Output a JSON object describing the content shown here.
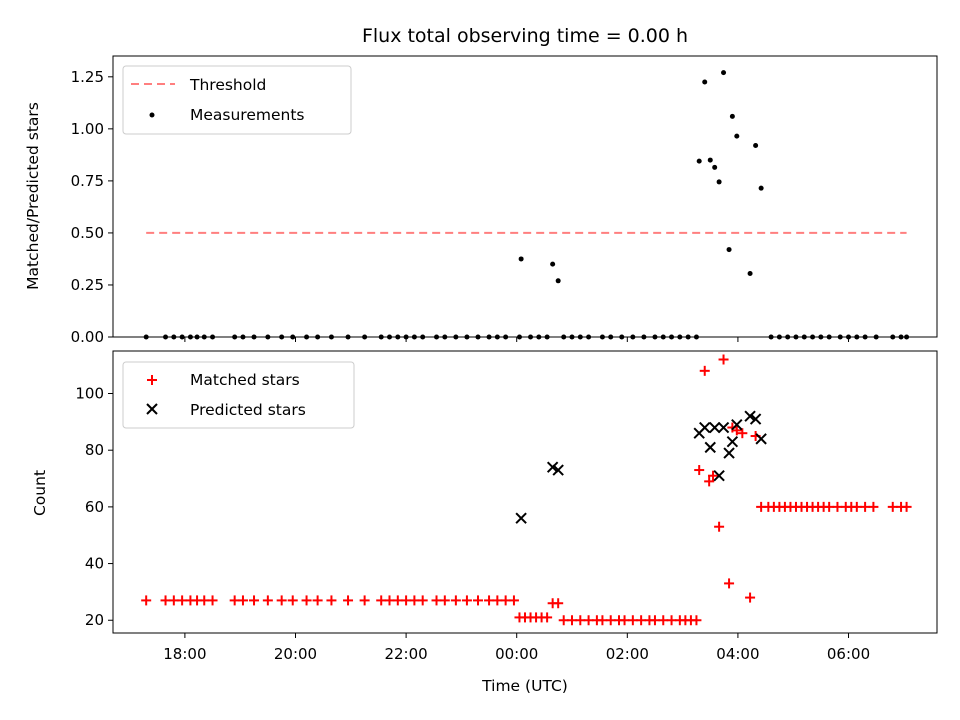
{
  "chart_data": [
    {
      "type": "scatter",
      "title": "Flux total observing time = 0.00 h",
      "xlabel": "",
      "ylabel": "Matched/Predicted stars",
      "ylim": [
        0,
        1.35
      ],
      "yticks": [
        0.0,
        0.25,
        0.5,
        0.75,
        1.0,
        1.25
      ],
      "ytick_labels": [
        "0.00",
        "0.25",
        "0.50",
        "0.75",
        "1.00",
        "1.25"
      ],
      "x_unit": "hours since 00:00 UTC",
      "xlim": [
        -7.3,
        7.6
      ],
      "legend": {
        "placement": "upper-left",
        "entries": [
          "Threshold",
          "Measurements"
        ]
      },
      "threshold": {
        "name": "Threshold",
        "value": 0.5,
        "x_range": [
          -6.7,
          7.05
        ],
        "color": "#ff7f7f"
      },
      "measurements": {
        "name": "Measurements",
        "color": "#000000",
        "points": [
          [
            -6.7,
            0
          ],
          [
            -6.35,
            0
          ],
          [
            -6.2,
            0
          ],
          [
            -6.05,
            0
          ],
          [
            -5.9,
            0
          ],
          [
            -5.78,
            0
          ],
          [
            -5.65,
            0
          ],
          [
            -5.5,
            0
          ],
          [
            -5.1,
            0
          ],
          [
            -4.95,
            0
          ],
          [
            -4.75,
            0
          ],
          [
            -4.5,
            0
          ],
          [
            -4.25,
            0
          ],
          [
            -4.05,
            0
          ],
          [
            -3.8,
            0
          ],
          [
            -3.6,
            0
          ],
          [
            -3.35,
            0
          ],
          [
            -3.05,
            0
          ],
          [
            -2.75,
            0
          ],
          [
            -2.45,
            0
          ],
          [
            -2.3,
            0
          ],
          [
            -2.15,
            0
          ],
          [
            -2.0,
            0
          ],
          [
            -1.85,
            0
          ],
          [
            -1.7,
            0
          ],
          [
            -1.45,
            0
          ],
          [
            -1.3,
            0
          ],
          [
            -1.1,
            0
          ],
          [
            -0.9,
            0
          ],
          [
            -0.7,
            0
          ],
          [
            -0.5,
            0
          ],
          [
            -0.35,
            0
          ],
          [
            -0.2,
            0
          ],
          [
            0.05,
            0
          ],
          [
            0.25,
            0
          ],
          [
            0.4,
            0
          ],
          [
            0.55,
            0
          ],
          [
            0.85,
            0
          ],
          [
            1.0,
            0
          ],
          [
            1.15,
            0
          ],
          [
            1.3,
            0
          ],
          [
            1.55,
            0
          ],
          [
            1.7,
            0
          ],
          [
            1.9,
            0
          ],
          [
            2.1,
            0
          ],
          [
            2.3,
            0
          ],
          [
            2.5,
            0
          ],
          [
            2.65,
            0
          ],
          [
            2.8,
            0
          ],
          [
            2.95,
            0
          ],
          [
            3.1,
            0
          ],
          [
            3.25,
            0
          ],
          [
            4.6,
            0
          ],
          [
            4.75,
            0
          ],
          [
            4.9,
            0
          ],
          [
            5.05,
            0
          ],
          [
            5.2,
            0
          ],
          [
            5.35,
            0
          ],
          [
            5.5,
            0
          ],
          [
            5.65,
            0
          ],
          [
            5.85,
            0
          ],
          [
            6.0,
            0
          ],
          [
            6.15,
            0
          ],
          [
            6.3,
            0
          ],
          [
            6.5,
            0
          ],
          [
            6.8,
            0
          ],
          [
            6.95,
            0
          ],
          [
            7.05,
            0
          ],
          [
            0.08,
            0.375
          ],
          [
            0.65,
            0.35
          ],
          [
            0.75,
            0.27
          ],
          [
            3.3,
            0.845
          ],
          [
            3.4,
            1.225
          ],
          [
            3.5,
            0.85
          ],
          [
            3.58,
            0.815
          ],
          [
            3.66,
            0.745
          ],
          [
            3.74,
            1.27
          ],
          [
            3.84,
            0.42
          ],
          [
            3.9,
            1.06
          ],
          [
            3.98,
            0.965
          ],
          [
            4.22,
            0.305
          ],
          [
            4.32,
            0.92
          ],
          [
            4.42,
            0.715
          ]
        ]
      }
    },
    {
      "type": "scatter",
      "title": "",
      "xlabel": "Time (UTC)",
      "ylabel": "Count",
      "ylim": [
        15.5,
        115
      ],
      "yticks": [
        20,
        40,
        60,
        80,
        100
      ],
      "ytick_labels": [
        "20",
        "40",
        "60",
        "80",
        "100"
      ],
      "xticks": [
        -6,
        -4,
        -2,
        0,
        2,
        4,
        6
      ],
      "xtick_labels": [
        "18:00",
        "20:00",
        "22:00",
        "00:00",
        "02:00",
        "04:00",
        "06:00"
      ],
      "x_unit": "hours since 00:00 UTC",
      "xlim": [
        -7.3,
        7.6
      ],
      "legend": {
        "placement": "upper-left",
        "entries": [
          "Matched stars",
          "Predicted stars"
        ]
      },
      "series": [
        {
          "name": "Matched stars",
          "marker": "plus",
          "color": "#ff0000",
          "points": [
            [
              -6.7,
              27
            ],
            [
              -6.35,
              27
            ],
            [
              -6.2,
              27
            ],
            [
              -6.05,
              27
            ],
            [
              -5.9,
              27
            ],
            [
              -5.78,
              27
            ],
            [
              -5.65,
              27
            ],
            [
              -5.5,
              27
            ],
            [
              -5.1,
              27
            ],
            [
              -4.95,
              27
            ],
            [
              -4.75,
              27
            ],
            [
              -4.5,
              27
            ],
            [
              -4.25,
              27
            ],
            [
              -4.05,
              27
            ],
            [
              -3.8,
              27
            ],
            [
              -3.6,
              27
            ],
            [
              -3.35,
              27
            ],
            [
              -3.05,
              27
            ],
            [
              -2.75,
              27
            ],
            [
              -2.45,
              27
            ],
            [
              -2.3,
              27
            ],
            [
              -2.15,
              27
            ],
            [
              -2.0,
              27
            ],
            [
              -1.85,
              27
            ],
            [
              -1.7,
              27
            ],
            [
              -1.45,
              27
            ],
            [
              -1.3,
              27
            ],
            [
              -1.1,
              27
            ],
            [
              -0.9,
              27
            ],
            [
              -0.7,
              27
            ],
            [
              -0.5,
              27
            ],
            [
              -0.35,
              27
            ],
            [
              -0.2,
              27
            ],
            [
              -0.05,
              27
            ],
            [
              0.05,
              21
            ],
            [
              0.15,
              21
            ],
            [
              0.25,
              21
            ],
            [
              0.35,
              21
            ],
            [
              0.45,
              21
            ],
            [
              0.55,
              21
            ],
            [
              0.65,
              26
            ],
            [
              0.75,
              26
            ],
            [
              0.85,
              20
            ],
            [
              1.0,
              20
            ],
            [
              1.15,
              20
            ],
            [
              1.3,
              20
            ],
            [
              1.45,
              20
            ],
            [
              1.55,
              20
            ],
            [
              1.7,
              20
            ],
            [
              1.85,
              20
            ],
            [
              1.95,
              20
            ],
            [
              2.1,
              20
            ],
            [
              2.25,
              20
            ],
            [
              2.4,
              20
            ],
            [
              2.5,
              20
            ],
            [
              2.65,
              20
            ],
            [
              2.8,
              20
            ],
            [
              2.95,
              20
            ],
            [
              3.05,
              20
            ],
            [
              3.15,
              20
            ],
            [
              3.25,
              20
            ],
            [
              3.3,
              73
            ],
            [
              3.4,
              108
            ],
            [
              3.48,
              69
            ],
            [
              3.55,
              71
            ],
            [
              3.66,
              53
            ],
            [
              3.74,
              112
            ],
            [
              3.84,
              33
            ],
            [
              3.9,
              88
            ],
            [
              3.98,
              87
            ],
            [
              4.08,
              86
            ],
            [
              4.22,
              28
            ],
            [
              4.32,
              85
            ],
            [
              4.42,
              60
            ],
            [
              4.55,
              60
            ],
            [
              4.65,
              60
            ],
            [
              4.75,
              60
            ],
            [
              4.85,
              60
            ],
            [
              4.95,
              60
            ],
            [
              5.05,
              60
            ],
            [
              5.15,
              60
            ],
            [
              5.25,
              60
            ],
            [
              5.35,
              60
            ],
            [
              5.45,
              60
            ],
            [
              5.55,
              60
            ],
            [
              5.65,
              60
            ],
            [
              5.8,
              60
            ],
            [
              5.95,
              60
            ],
            [
              6.05,
              60
            ],
            [
              6.15,
              60
            ],
            [
              6.3,
              60
            ],
            [
              6.45,
              60
            ],
            [
              6.8,
              60
            ],
            [
              6.95,
              60
            ],
            [
              7.05,
              60
            ]
          ]
        },
        {
          "name": "Predicted stars",
          "marker": "x",
          "color": "#000000",
          "points": [
            [
              0.08,
              56
            ],
            [
              0.65,
              74
            ],
            [
              0.75,
              73
            ],
            [
              3.3,
              86
            ],
            [
              3.4,
              88
            ],
            [
              3.5,
              81
            ],
            [
              3.58,
              88
            ],
            [
              3.66,
              71
            ],
            [
              3.74,
              88
            ],
            [
              3.84,
              79
            ],
            [
              3.9,
              83
            ],
            [
              3.98,
              89
            ],
            [
              4.22,
              92
            ],
            [
              4.32,
              91
            ],
            [
              4.42,
              84
            ]
          ]
        }
      ]
    }
  ]
}
